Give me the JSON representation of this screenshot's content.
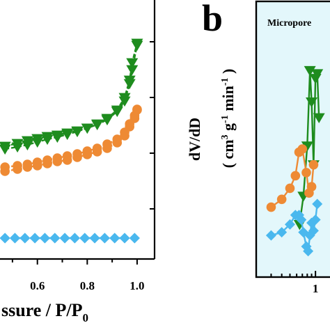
{
  "chart_data": [
    {
      "type": "line",
      "panel_label": "",
      "xlabel": "ssure / P/P0",
      "xlabel_parts": {
        "main": "ssure / P/P",
        "sub": "0"
      },
      "ylabel": "",
      "xlim": [
        0.45,
        1.07
      ],
      "xticks": [
        {
          "value": 0.6,
          "label": "0.6"
        },
        {
          "value": 0.8,
          "label": "0.8"
        },
        {
          "value": 1.0,
          "label": "1.0"
        }
      ],
      "series": [
        {
          "marker": "triangle-down",
          "color": "#1e8c1e",
          "x": [
            0.47,
            0.52,
            0.56,
            0.6,
            0.64,
            0.68,
            0.72,
            0.76,
            0.8,
            0.84,
            0.88,
            0.92,
            0.95,
            0.97,
            0.98,
            1.0
          ],
          "y_ads": [
            210,
            206,
            202,
            199,
            196,
            194,
            191,
            188,
            184,
            179,
            172,
            160,
            145,
            120,
            100,
            65
          ],
          "y_des": [
            214,
            211,
            208,
            204,
            200,
            197,
            193,
            189,
            184,
            178,
            170,
            158,
            140,
            115,
            90,
            62
          ]
        },
        {
          "marker": "circle",
          "color": "#ee8a34",
          "x": [
            0.47,
            0.52,
            0.56,
            0.6,
            0.64,
            0.68,
            0.72,
            0.76,
            0.8,
            0.84,
            0.88,
            0.92,
            0.95,
            0.97,
            0.99,
            1.0
          ],
          "y_ads": [
            246,
            243,
            240,
            238,
            235,
            232,
            230,
            226,
            222,
            218,
            213,
            205,
            195,
            182,
            170,
            158
          ],
          "y_des": [
            240,
            238,
            236,
            233,
            230,
            227,
            224,
            221,
            217,
            213,
            207,
            200,
            190,
            178,
            166,
            157
          ]
        },
        {
          "marker": "diamond",
          "color": "#4ab8ee",
          "x": [
            0.47,
            0.51,
            0.55,
            0.59,
            0.63,
            0.67,
            0.71,
            0.75,
            0.79,
            0.83,
            0.87,
            0.91,
            0.95,
            0.99
          ],
          "y_ads": [
            342,
            342,
            342,
            342,
            342,
            342,
            342,
            342,
            342,
            342,
            342,
            342,
            342,
            342
          ],
          "y_des": [
            342,
            342,
            342,
            342,
            342,
            342,
            342,
            342,
            342,
            342,
            342,
            342,
            342,
            342
          ]
        }
      ]
    },
    {
      "type": "line",
      "panel_label": "b",
      "inset_label": "Micropore",
      "background": "#e3f7fb",
      "xlabel": "",
      "ylabel_line1": "dV/dD",
      "ylabel_line2": {
        "open": "( cm",
        "sup1": "3",
        "mid": " g",
        "sup2": "-1",
        "mid2": " min",
        "sup3": "-1",
        "close": " )"
      },
      "xscale": "log",
      "xticks": [
        {
          "value": 1,
          "label": "1"
        }
      ],
      "series": [
        {
          "marker": "triangle-down",
          "color": "#1e8c1e",
          "x": [
            0.65,
            0.72,
            0.8,
            0.86,
            0.9,
            0.95,
            1.0,
            1.05,
            1.1
          ],
          "y": [
            22,
            40,
            72,
            120,
            100,
            60,
            115,
            118,
            90
          ]
        },
        {
          "marker": "circle",
          "color": "#ee8a34",
          "x": [
            0.3,
            0.4,
            0.5,
            0.58,
            0.64,
            0.7,
            0.78,
            0.84,
            0.9,
            0.95
          ],
          "y": [
            33,
            38,
            45,
            53,
            68,
            70,
            55,
            42,
            46,
            60
          ]
        },
        {
          "marker": "diamond",
          "color": "#4ab8ee",
          "x": [
            0.3,
            0.4,
            0.5,
            0.58,
            0.64,
            0.68,
            0.72,
            0.78,
            0.82,
            0.86,
            0.9,
            0.95,
            1.0,
            1.05
          ],
          "y": [
            15,
            17,
            22,
            28,
            28,
            25,
            17,
            8,
            5,
            15,
            23,
            18,
            25,
            35
          ]
        }
      ]
    }
  ]
}
